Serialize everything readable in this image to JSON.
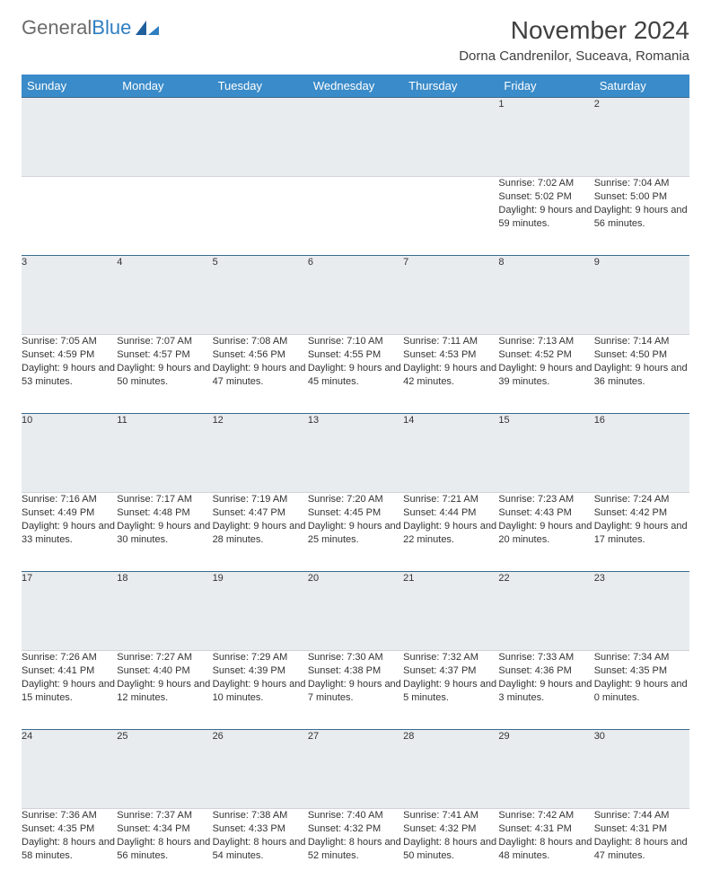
{
  "logo": {
    "text_gray": "General",
    "text_blue": "Blue"
  },
  "month_title": "November 2024",
  "location": "Dorna Candrenilor, Suceava, Romania",
  "colors": {
    "header_bg": "#3a8bc9",
    "header_text": "#ffffff",
    "daynum_bg": "#e9ecef",
    "daynum_border_top": "#3a6a8e",
    "logo_gray": "#6b6b6b",
    "logo_blue": "#2f7ec1",
    "body_text": "#333333",
    "page_bg": "#ffffff"
  },
  "typography": {
    "month_title_fontsize": 28,
    "location_fontsize": 15,
    "weekday_fontsize": 13,
    "daynum_fontsize": 12,
    "cell_fontsize": 11,
    "font_family": "Arial"
  },
  "weekdays": [
    "Sunday",
    "Monday",
    "Tuesday",
    "Wednesday",
    "Thursday",
    "Friday",
    "Saturday"
  ],
  "weeks": [
    [
      {
        "num": "",
        "sunrise": "",
        "sunset": "",
        "daylight": ""
      },
      {
        "num": "",
        "sunrise": "",
        "sunset": "",
        "daylight": ""
      },
      {
        "num": "",
        "sunrise": "",
        "sunset": "",
        "daylight": ""
      },
      {
        "num": "",
        "sunrise": "",
        "sunset": "",
        "daylight": ""
      },
      {
        "num": "",
        "sunrise": "",
        "sunset": "",
        "daylight": ""
      },
      {
        "num": "1",
        "sunrise": "Sunrise: 7:02 AM",
        "sunset": "Sunset: 5:02 PM",
        "daylight": "Daylight: 9 hours and 59 minutes."
      },
      {
        "num": "2",
        "sunrise": "Sunrise: 7:04 AM",
        "sunset": "Sunset: 5:00 PM",
        "daylight": "Daylight: 9 hours and 56 minutes."
      }
    ],
    [
      {
        "num": "3",
        "sunrise": "Sunrise: 7:05 AM",
        "sunset": "Sunset: 4:59 PM",
        "daylight": "Daylight: 9 hours and 53 minutes."
      },
      {
        "num": "4",
        "sunrise": "Sunrise: 7:07 AM",
        "sunset": "Sunset: 4:57 PM",
        "daylight": "Daylight: 9 hours and 50 minutes."
      },
      {
        "num": "5",
        "sunrise": "Sunrise: 7:08 AM",
        "sunset": "Sunset: 4:56 PM",
        "daylight": "Daylight: 9 hours and 47 minutes."
      },
      {
        "num": "6",
        "sunrise": "Sunrise: 7:10 AM",
        "sunset": "Sunset: 4:55 PM",
        "daylight": "Daylight: 9 hours and 45 minutes."
      },
      {
        "num": "7",
        "sunrise": "Sunrise: 7:11 AM",
        "sunset": "Sunset: 4:53 PM",
        "daylight": "Daylight: 9 hours and 42 minutes."
      },
      {
        "num": "8",
        "sunrise": "Sunrise: 7:13 AM",
        "sunset": "Sunset: 4:52 PM",
        "daylight": "Daylight: 9 hours and 39 minutes."
      },
      {
        "num": "9",
        "sunrise": "Sunrise: 7:14 AM",
        "sunset": "Sunset: 4:50 PM",
        "daylight": "Daylight: 9 hours and 36 minutes."
      }
    ],
    [
      {
        "num": "10",
        "sunrise": "Sunrise: 7:16 AM",
        "sunset": "Sunset: 4:49 PM",
        "daylight": "Daylight: 9 hours and 33 minutes."
      },
      {
        "num": "11",
        "sunrise": "Sunrise: 7:17 AM",
        "sunset": "Sunset: 4:48 PM",
        "daylight": "Daylight: 9 hours and 30 minutes."
      },
      {
        "num": "12",
        "sunrise": "Sunrise: 7:19 AM",
        "sunset": "Sunset: 4:47 PM",
        "daylight": "Daylight: 9 hours and 28 minutes."
      },
      {
        "num": "13",
        "sunrise": "Sunrise: 7:20 AM",
        "sunset": "Sunset: 4:45 PM",
        "daylight": "Daylight: 9 hours and 25 minutes."
      },
      {
        "num": "14",
        "sunrise": "Sunrise: 7:21 AM",
        "sunset": "Sunset: 4:44 PM",
        "daylight": "Daylight: 9 hours and 22 minutes."
      },
      {
        "num": "15",
        "sunrise": "Sunrise: 7:23 AM",
        "sunset": "Sunset: 4:43 PM",
        "daylight": "Daylight: 9 hours and 20 minutes."
      },
      {
        "num": "16",
        "sunrise": "Sunrise: 7:24 AM",
        "sunset": "Sunset: 4:42 PM",
        "daylight": "Daylight: 9 hours and 17 minutes."
      }
    ],
    [
      {
        "num": "17",
        "sunrise": "Sunrise: 7:26 AM",
        "sunset": "Sunset: 4:41 PM",
        "daylight": "Daylight: 9 hours and 15 minutes."
      },
      {
        "num": "18",
        "sunrise": "Sunrise: 7:27 AM",
        "sunset": "Sunset: 4:40 PM",
        "daylight": "Daylight: 9 hours and 12 minutes."
      },
      {
        "num": "19",
        "sunrise": "Sunrise: 7:29 AM",
        "sunset": "Sunset: 4:39 PM",
        "daylight": "Daylight: 9 hours and 10 minutes."
      },
      {
        "num": "20",
        "sunrise": "Sunrise: 7:30 AM",
        "sunset": "Sunset: 4:38 PM",
        "daylight": "Daylight: 9 hours and 7 minutes."
      },
      {
        "num": "21",
        "sunrise": "Sunrise: 7:32 AM",
        "sunset": "Sunset: 4:37 PM",
        "daylight": "Daylight: 9 hours and 5 minutes."
      },
      {
        "num": "22",
        "sunrise": "Sunrise: 7:33 AM",
        "sunset": "Sunset: 4:36 PM",
        "daylight": "Daylight: 9 hours and 3 minutes."
      },
      {
        "num": "23",
        "sunrise": "Sunrise: 7:34 AM",
        "sunset": "Sunset: 4:35 PM",
        "daylight": "Daylight: 9 hours and 0 minutes."
      }
    ],
    [
      {
        "num": "24",
        "sunrise": "Sunrise: 7:36 AM",
        "sunset": "Sunset: 4:35 PM",
        "daylight": "Daylight: 8 hours and 58 minutes."
      },
      {
        "num": "25",
        "sunrise": "Sunrise: 7:37 AM",
        "sunset": "Sunset: 4:34 PM",
        "daylight": "Daylight: 8 hours and 56 minutes."
      },
      {
        "num": "26",
        "sunrise": "Sunrise: 7:38 AM",
        "sunset": "Sunset: 4:33 PM",
        "daylight": "Daylight: 8 hours and 54 minutes."
      },
      {
        "num": "27",
        "sunrise": "Sunrise: 7:40 AM",
        "sunset": "Sunset: 4:32 PM",
        "daylight": "Daylight: 8 hours and 52 minutes."
      },
      {
        "num": "28",
        "sunrise": "Sunrise: 7:41 AM",
        "sunset": "Sunset: 4:32 PM",
        "daylight": "Daylight: 8 hours and 50 minutes."
      },
      {
        "num": "29",
        "sunrise": "Sunrise: 7:42 AM",
        "sunset": "Sunset: 4:31 PM",
        "daylight": "Daylight: 8 hours and 48 minutes."
      },
      {
        "num": "30",
        "sunrise": "Sunrise: 7:44 AM",
        "sunset": "Sunset: 4:31 PM",
        "daylight": "Daylight: 8 hours and 47 minutes."
      }
    ]
  ]
}
